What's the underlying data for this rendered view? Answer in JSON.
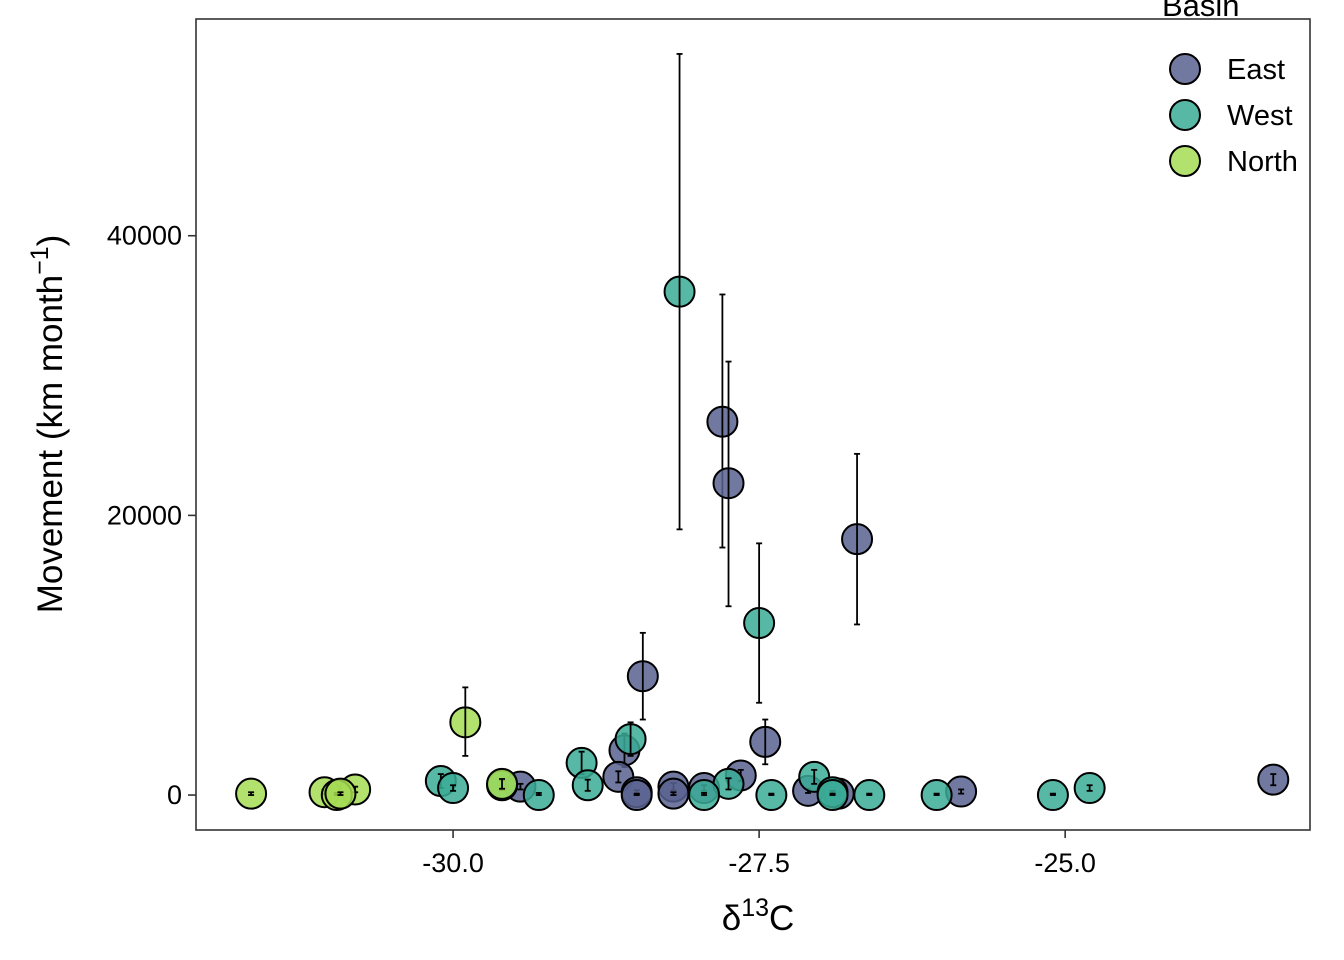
{
  "chart_data": {
    "type": "scatter",
    "title": "",
    "xlabel": {
      "delta": "δ",
      "superscript": "13",
      "element": "C"
    },
    "ylabel": {
      "main": "Movement (km  month",
      "superscript": "−1",
      "close": ")"
    },
    "xlim": [
      -32.1,
      -23.0
    ],
    "ylim": [
      -2500,
      55500
    ],
    "x_ticks": [
      -30.0,
      -27.5,
      -25.0
    ],
    "x_tick_labels": [
      "-30.0",
      "-27.5",
      "-25.0"
    ],
    "y_ticks": [
      0,
      20000,
      40000
    ],
    "y_tick_labels": [
      "0",
      "20000",
      "40000"
    ],
    "grid": false,
    "legend": {
      "title": "Basin",
      "placement": "top-right",
      "entries": [
        "East",
        "West",
        "North"
      ]
    },
    "colors": {
      "East": "#59628f",
      "West": "#3aab97",
      "North": "#a6dc55"
    },
    "series": [
      {
        "name": "East",
        "points": [
          {
            "x": -27.8,
            "y": 26700,
            "lo": 17700,
            "hi": 35800
          },
          {
            "x": -27.75,
            "y": 22300,
            "lo": 13500,
            "hi": 31000
          },
          {
            "x": -26.7,
            "y": 18300,
            "lo": 12200,
            "hi": 24400
          },
          {
            "x": -28.45,
            "y": 8500,
            "lo": 5400,
            "hi": 11600
          },
          {
            "x": -27.45,
            "y": 3800,
            "lo": 2200,
            "hi": 5400
          },
          {
            "x": -28.6,
            "y": 3200,
            "lo": 2000,
            "hi": 4400
          },
          {
            "x": -28.65,
            "y": 1300,
            "lo": 900,
            "hi": 1700
          },
          {
            "x": -27.65,
            "y": 1400,
            "lo": 1000,
            "hi": 1800
          },
          {
            "x": -23.3,
            "y": 1100,
            "lo": 700,
            "hi": 1500
          },
          {
            "x": -29.45,
            "y": 600,
            "lo": 400,
            "hi": 800
          },
          {
            "x": -28.2,
            "y": 600,
            "lo": 350,
            "hi": 850
          },
          {
            "x": -27.95,
            "y": 500,
            "lo": 300,
            "hi": 700
          },
          {
            "x": -28.5,
            "y": 200,
            "lo": 50,
            "hi": 350
          },
          {
            "x": -28.2,
            "y": 100,
            "lo": 0,
            "hi": 200
          },
          {
            "x": -27.1,
            "y": 300,
            "lo": 150,
            "hi": 450
          },
          {
            "x": -26.85,
            "y": 100,
            "lo": 0,
            "hi": 200
          },
          {
            "x": -25.85,
            "y": 250,
            "lo": 100,
            "hi": 400
          },
          {
            "x": -28.5,
            "y": 0,
            "lo": 0,
            "hi": 100
          }
        ]
      },
      {
        "name": "West",
        "points": [
          {
            "x": -28.15,
            "y": 36000,
            "lo": 19000,
            "hi": 53000
          },
          {
            "x": -27.5,
            "y": 12300,
            "lo": 6600,
            "hi": 18000
          },
          {
            "x": -28.55,
            "y": 4000,
            "lo": 2800,
            "hi": 5200
          },
          {
            "x": -28.95,
            "y": 2300,
            "lo": 1500,
            "hi": 3100
          },
          {
            "x": -30.1,
            "y": 1000,
            "lo": 500,
            "hi": 1500
          },
          {
            "x": -27.05,
            "y": 1300,
            "lo": 800,
            "hi": 1800
          },
          {
            "x": -29.6,
            "y": 700,
            "lo": 350,
            "hi": 1050
          },
          {
            "x": -28.9,
            "y": 700,
            "lo": 300,
            "hi": 1100
          },
          {
            "x": -30.0,
            "y": 500,
            "lo": 300,
            "hi": 700
          },
          {
            "x": -27.75,
            "y": 800,
            "lo": 400,
            "hi": 1200
          },
          {
            "x": -24.8,
            "y": 500,
            "lo": 300,
            "hi": 700
          },
          {
            "x": -26.9,
            "y": 200,
            "lo": 100,
            "hi": 300
          },
          {
            "x": -29.3,
            "y": 0,
            "lo": 0,
            "hi": 150
          },
          {
            "x": -27.95,
            "y": 0,
            "lo": 0,
            "hi": 150
          },
          {
            "x": -27.4,
            "y": 0,
            "lo": 0,
            "hi": 100
          },
          {
            "x": -26.6,
            "y": 0,
            "lo": 0,
            "hi": 100
          },
          {
            "x": -26.05,
            "y": 0,
            "lo": 0,
            "hi": 100
          },
          {
            "x": -25.1,
            "y": 0,
            "lo": 0,
            "hi": 100
          },
          {
            "x": -26.9,
            "y": 0,
            "lo": 0,
            "hi": 100
          }
        ]
      },
      {
        "name": "North",
        "points": [
          {
            "x": -29.9,
            "y": 5200,
            "lo": 2800,
            "hi": 7700
          },
          {
            "x": -29.6,
            "y": 800,
            "lo": 450,
            "hi": 1150
          },
          {
            "x": -30.8,
            "y": 400,
            "lo": 200,
            "hi": 600
          },
          {
            "x": -31.05,
            "y": 200,
            "lo": 50,
            "hi": 350
          },
          {
            "x": -31.65,
            "y": 100,
            "lo": 0,
            "hi": 200
          },
          {
            "x": -30.95,
            "y": 0,
            "lo": 0,
            "hi": 150
          },
          {
            "x": -30.92,
            "y": 100,
            "lo": 0,
            "hi": 200
          }
        ]
      }
    ]
  }
}
